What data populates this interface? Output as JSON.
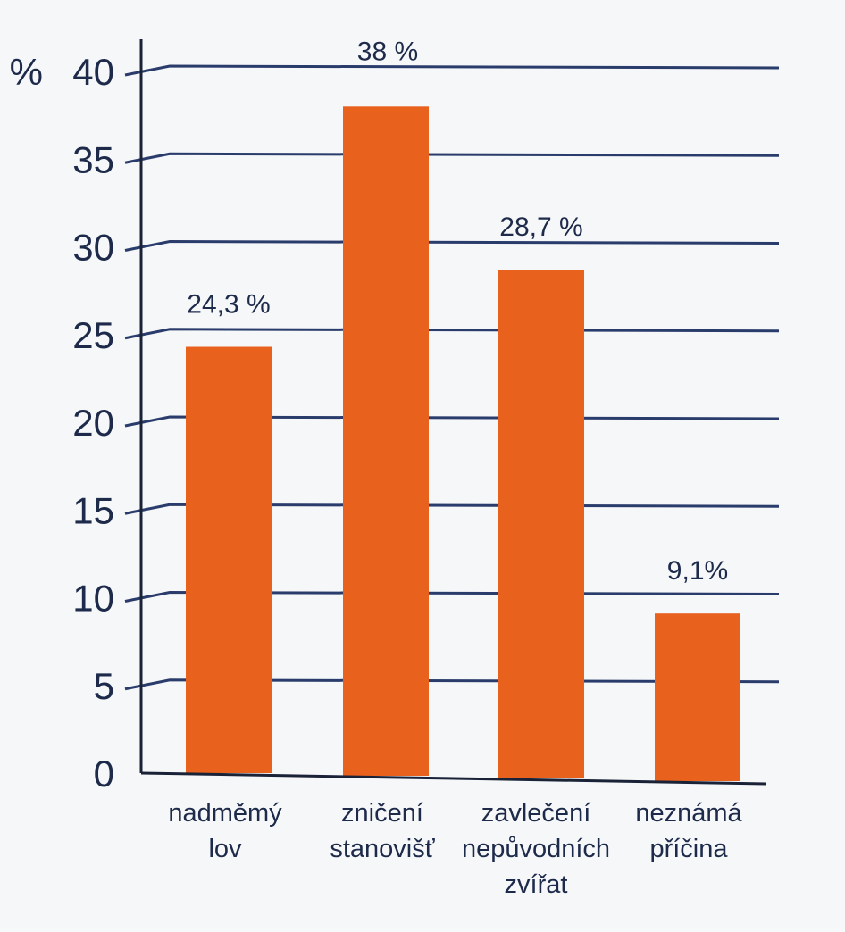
{
  "chart_data": {
    "type": "bar",
    "ylabel": "%",
    "ylim": [
      0,
      40
    ],
    "yticks": [
      0,
      5,
      10,
      15,
      20,
      25,
      30,
      35,
      40
    ],
    "grid": true,
    "bar_color": "#e8621e",
    "grid_color": "#2a3c6b",
    "categories": [
      [
        "nadměmý",
        "lov"
      ],
      [
        "zničení",
        "stanovišť"
      ],
      [
        "zavlečení",
        "nepůvodních",
        "zvířat"
      ],
      [
        "neznámá",
        "příčina"
      ]
    ],
    "values": [
      24.3,
      38,
      28.7,
      9.1
    ],
    "value_labels": [
      "24,3 %",
      "38 %",
      "28,7 %",
      "9,1%"
    ]
  }
}
